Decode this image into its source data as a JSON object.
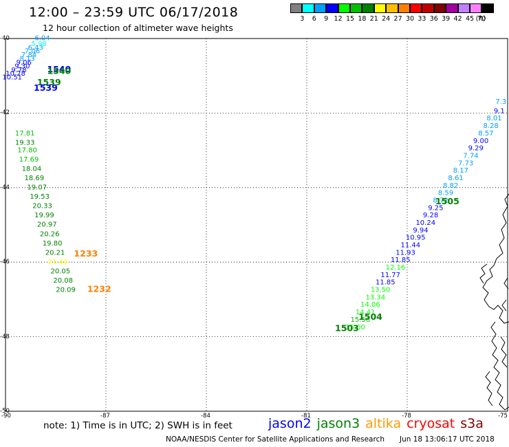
{
  "title": "12:00 – 23:59 UTC 06/17/2018",
  "subtitle": "12 hour collection of altimeter wave heights",
  "legend": {
    "unit": "(ft)",
    "bins": [
      {
        "label": "3",
        "color": "#808080"
      },
      {
        "label": "6",
        "color": "#00ffff"
      },
      {
        "label": "9",
        "color": "#00a0ff"
      },
      {
        "label": "12",
        "color": "#0000ff"
      },
      {
        "label": "15",
        "color": "#00ff00"
      },
      {
        "label": "18",
        "color": "#00c000"
      },
      {
        "label": "21",
        "color": "#008000"
      },
      {
        "label": "24",
        "color": "#ffff00"
      },
      {
        "label": "27",
        "color": "#ffc000"
      },
      {
        "label": "30",
        "color": "#ff8000"
      },
      {
        "label": "33",
        "color": "#ff0000"
      },
      {
        "label": "36",
        "color": "#c00000"
      },
      {
        "label": "39",
        "color": "#800000"
      },
      {
        "label": "42",
        "color": "#a000a0"
      },
      {
        "label": "45",
        "color": "#c080ff"
      },
      {
        "label": "70",
        "color": "#ff80ff"
      },
      {
        "label": "",
        "color": "#000000"
      }
    ]
  },
  "axes": {
    "lat_labels": [
      "-40",
      "-42",
      "-44",
      "-46",
      "-48",
      "-50"
    ],
    "lon_labels": [
      "-90",
      "-87",
      "-84",
      "-81",
      "-78",
      "-75"
    ],
    "lat_range": [
      -50,
      -40
    ],
    "lon_range": [
      -90,
      -75
    ]
  },
  "map": {
    "readings": [
      {
        "lon": -88.9,
        "lat": -40.05,
        "v": "6.04",
        "c": "#00a0ff"
      },
      {
        "lon": -89.0,
        "lat": -40.2,
        "v": "5.98",
        "c": "#00ffff"
      },
      {
        "lon": -89.1,
        "lat": -40.3,
        "v": "6.43",
        "c": "#00a0ff"
      },
      {
        "lon": -89.2,
        "lat": -40.4,
        "v": "7.06",
        "c": "#00a0ff"
      },
      {
        "lon": -89.3,
        "lat": -40.5,
        "v": "7.84",
        "c": "#00a0ff"
      },
      {
        "lon": -89.35,
        "lat": -40.6,
        "v": "8.13",
        "c": "#00a0ff"
      },
      {
        "lon": -89.45,
        "lat": -40.7,
        "v": "9.06",
        "c": "#0000ff"
      },
      {
        "lon": -89.5,
        "lat": -40.8,
        "v": "9.30",
        "c": "#0000ff"
      },
      {
        "lon": -89.6,
        "lat": -40.9,
        "v": "9.78",
        "c": "#0000ff"
      },
      {
        "lon": -89.7,
        "lat": -41.0,
        "v": "10.28",
        "c": "#0000ff"
      },
      {
        "lon": -89.8,
        "lat": -41.1,
        "v": "10.51",
        "c": "#0000ff"
      },
      {
        "lon": -89.42,
        "lat": -42.6,
        "v": "17.81",
        "c": "#00c000"
      },
      {
        "lon": -89.42,
        "lat": -42.85,
        "v": "19.33",
        "c": "#008000"
      },
      {
        "lon": -89.35,
        "lat": -43.05,
        "v": "17.80",
        "c": "#00c000"
      },
      {
        "lon": -89.3,
        "lat": -43.3,
        "v": "17.69",
        "c": "#00c000"
      },
      {
        "lon": -89.22,
        "lat": -43.55,
        "v": "18.04",
        "c": "#008000"
      },
      {
        "lon": -89.14,
        "lat": -43.8,
        "v": "18.69",
        "c": "#008000"
      },
      {
        "lon": -89.06,
        "lat": -44.05,
        "v": "19.07",
        "c": "#008000"
      },
      {
        "lon": -88.98,
        "lat": -44.3,
        "v": "19.53",
        "c": "#008000"
      },
      {
        "lon": -88.9,
        "lat": -44.55,
        "v": "20.33",
        "c": "#008000"
      },
      {
        "lon": -88.84,
        "lat": -44.8,
        "v": "19.99",
        "c": "#008000"
      },
      {
        "lon": -88.76,
        "lat": -45.05,
        "v": "20.97",
        "c": "#008000"
      },
      {
        "lon": -88.68,
        "lat": -45.3,
        "v": "20.26",
        "c": "#008000"
      },
      {
        "lon": -88.6,
        "lat": -45.55,
        "v": "19.80",
        "c": "#008000"
      },
      {
        "lon": -88.52,
        "lat": -45.8,
        "v": "20.21",
        "c": "#008000"
      },
      {
        "lon": -88.44,
        "lat": -46.05,
        "v": "21.49",
        "c": "#ffff00"
      },
      {
        "lon": -88.36,
        "lat": -46.3,
        "v": "20.05",
        "c": "#008000"
      },
      {
        "lon": -88.28,
        "lat": -46.55,
        "v": "20.08",
        "c": "#008000"
      },
      {
        "lon": -88.2,
        "lat": -46.8,
        "v": "20.09",
        "c": "#008000"
      },
      {
        "lon": -75.2,
        "lat": -41.75,
        "v": "7.3",
        "c": "#00a0ff"
      },
      {
        "lon": -75.25,
        "lat": -42.0,
        "v": "9.1",
        "c": "#0000ff"
      },
      {
        "lon": -75.4,
        "lat": -42.2,
        "v": "8.01",
        "c": "#00a0ff"
      },
      {
        "lon": -75.5,
        "lat": -42.4,
        "v": "8.28",
        "c": "#00a0ff"
      },
      {
        "lon": -75.65,
        "lat": -42.6,
        "v": "8.57",
        "c": "#00a0ff"
      },
      {
        "lon": -75.8,
        "lat": -42.8,
        "v": "9.00",
        "c": "#0000ff"
      },
      {
        "lon": -75.95,
        "lat": -43.0,
        "v": "9.29",
        "c": "#0000ff"
      },
      {
        "lon": -76.1,
        "lat": -43.2,
        "v": "7.74",
        "c": "#00a0ff"
      },
      {
        "lon": -76.25,
        "lat": -43.4,
        "v": "7.73",
        "c": "#00a0ff"
      },
      {
        "lon": -76.4,
        "lat": -43.6,
        "v": "8.17",
        "c": "#00a0ff"
      },
      {
        "lon": -76.55,
        "lat": -43.8,
        "v": "8.61",
        "c": "#00a0ff"
      },
      {
        "lon": -76.7,
        "lat": -44.0,
        "v": "8.82",
        "c": "#00a0ff"
      },
      {
        "lon": -76.85,
        "lat": -44.2,
        "v": "8.59",
        "c": "#00a0ff"
      },
      {
        "lon": -77.0,
        "lat": -44.4,
        "v": "8.72",
        "c": "#00a0ff"
      },
      {
        "lon": -77.15,
        "lat": -44.6,
        "v": "9.25",
        "c": "#0000ff"
      },
      {
        "lon": -77.3,
        "lat": -44.8,
        "v": "9.28",
        "c": "#0000ff"
      },
      {
        "lon": -77.45,
        "lat": -45.0,
        "v": "10.24",
        "c": "#0000ff"
      },
      {
        "lon": -77.6,
        "lat": -45.2,
        "v": "9.94",
        "c": "#0000ff"
      },
      {
        "lon": -77.75,
        "lat": -45.4,
        "v": "10.95",
        "c": "#0000ff"
      },
      {
        "lon": -77.9,
        "lat": -45.6,
        "v": "11.44",
        "c": "#0000ff"
      },
      {
        "lon": -78.05,
        "lat": -45.8,
        "v": "11.93",
        "c": "#0000ff"
      },
      {
        "lon": -78.2,
        "lat": -46.0,
        "v": "11.85",
        "c": "#0000ff"
      },
      {
        "lon": -78.35,
        "lat": -46.2,
        "v": "12.16",
        "c": "#00ff00"
      },
      {
        "lon": -78.5,
        "lat": -46.4,
        "v": "11.77",
        "c": "#0000ff"
      },
      {
        "lon": -78.65,
        "lat": -46.6,
        "v": "11.85",
        "c": "#0000ff"
      },
      {
        "lon": -78.8,
        "lat": -46.8,
        "v": "13.50",
        "c": "#00ff00"
      },
      {
        "lon": -78.95,
        "lat": -47.0,
        "v": "13.34",
        "c": "#00ff00"
      },
      {
        "lon": -79.1,
        "lat": -47.2,
        "v": "14.06",
        "c": "#00ff00"
      },
      {
        "lon": -79.25,
        "lat": -47.4,
        "v": "14.41",
        "c": "#00ff00"
      },
      {
        "lon": -79.4,
        "lat": -47.6,
        "v": "15.56",
        "c": "#00c000"
      },
      {
        "lon": -79.55,
        "lat": -47.8,
        "v": "15.00",
        "c": "#00ff00"
      }
    ],
    "pass_times": [
      {
        "lon": -88.4,
        "lat": -40.9,
        "v": "1540",
        "c": "#0000ff"
      },
      {
        "lon": -88.4,
        "lat": -40.95,
        "v": "1540",
        "c": "#008000"
      },
      {
        "lon": -88.7,
        "lat": -41.25,
        "v": "1539",
        "c": "#008000"
      },
      {
        "lon": -88.8,
        "lat": -41.4,
        "v": "1539",
        "c": "#0000ff"
      },
      {
        "lon": -87.6,
        "lat": -45.85,
        "v": "1233",
        "c": "#ff8000"
      },
      {
        "lon": -87.2,
        "lat": -46.8,
        "v": "1232",
        "c": "#ff8000"
      },
      {
        "lon": -76.8,
        "lat": -44.45,
        "v": "1505",
        "c": "#008000"
      },
      {
        "lon": -79.1,
        "lat": -47.55,
        "v": "1504",
        "c": "#008000"
      },
      {
        "lon": -79.8,
        "lat": -47.85,
        "v": "1503",
        "c": "#008000"
      }
    ]
  },
  "footer": {
    "note": "note: 1) Time is in UTC; 2) SWH is in feet",
    "satellites": [
      {
        "name": "jason2",
        "color": "#0000ff"
      },
      {
        "name": "jason3",
        "color": "#008000"
      },
      {
        "name": "altika",
        "color": "#ff9900"
      },
      {
        "name": "cryosat",
        "color": "#ff0000"
      },
      {
        "name": "s3a",
        "color": "#800000"
      }
    ],
    "credit": "NOAA/NESDIS Center for Satellite Applications and Research",
    "timestamp": "Jun 18 13:06:17 UTC 2018"
  }
}
